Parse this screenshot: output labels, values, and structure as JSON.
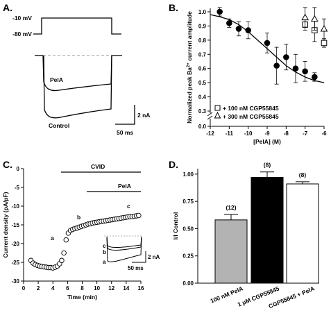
{
  "panels": {
    "A": {
      "label": "A.",
      "protocol": {
        "v_test": "-10 mV",
        "v_hold": "-80 mV"
      },
      "trace_labels": {
        "pela": "PelA",
        "control": "Control"
      },
      "scale_bar": {
        "current": "2 nA",
        "time": "50 ms"
      }
    },
    "B": {
      "label": "B.",
      "legend": [
        {
          "marker": "square",
          "label": "+ 100 nM CGP55845"
        },
        {
          "marker": "triangle",
          "label": "+ 300 nM CGP55845"
        }
      ]
    },
    "C": {
      "label": "C.",
      "bars": {
        "cvid": "CVID",
        "pela": "PelA"
      },
      "point_labels": {
        "a": "a",
        "b": "b",
        "c": "c"
      },
      "inset": {
        "labels": [
          "c",
          "b",
          "a"
        ],
        "scale_current": "2 nA",
        "scale_time": "50 ms"
      }
    },
    "D": {
      "label": "D.",
      "n_labels": [
        "(12)",
        "(8)",
        "(8)"
      ]
    }
  },
  "chart_data": [
    {
      "panel": "B",
      "type": "scatter",
      "xlabel": "[PelA] (M)",
      "ylabel": "Normalized peak Ba2+ current amplitude",
      "xlim": [
        -12,
        -6
      ],
      "ylim": [
        0,
        1.05
      ],
      "xticks": [
        "-12",
        "-11",
        "-10",
        "-9",
        "-8",
        "-7",
        "-6"
      ],
      "yticks": [
        "0.0",
        "0.3",
        "0.4",
        "0.5",
        "0.6",
        "0.7",
        "0.8",
        "0.9",
        "1.0"
      ],
      "axis_break": true,
      "series": [
        {
          "marker": "circle-filled",
          "x": [
            -11.5,
            -11,
            -10.5,
            -10,
            -9,
            -8.5,
            -8,
            -7.5,
            -7,
            -6.5
          ],
          "y": [
            1.0,
            0.92,
            0.88,
            0.87,
            0.78,
            0.62,
            0.68,
            0.6,
            0.58,
            0.54
          ],
          "err": [
            0.03,
            0.03,
            0.05,
            0.06,
            0.07,
            0.13,
            0.09,
            0.1,
            0.07,
            0.03
          ]
        },
        {
          "marker": "square-open",
          "x": [
            -7,
            -6.5,
            -6
          ],
          "y": [
            0.91,
            0.87,
            0.78
          ],
          "err": [
            0.04,
            0.08,
            0.03
          ]
        },
        {
          "marker": "triangle-open",
          "x": [
            -7,
            -6.5,
            -6
          ],
          "y": [
            0.96,
            0.95,
            0.88
          ],
          "err": [
            0.07,
            0.08,
            0.07
          ]
        }
      ],
      "fit": {
        "x": [
          -12,
          -11.5,
          -11,
          -10.5,
          -10,
          -9.5,
          -9,
          -8.5,
          -8,
          -7.5,
          -7,
          -6.5,
          -6
        ],
        "y": [
          0.98,
          0.965,
          0.945,
          0.91,
          0.86,
          0.8,
          0.74,
          0.68,
          0.62,
          0.575,
          0.54,
          0.515,
          0.5
        ]
      }
    },
    {
      "panel": "C",
      "type": "scatter",
      "xlabel": "Time (min)",
      "ylabel": "Current density (pA/pF)",
      "xlim": [
        0,
        16
      ],
      "ylim": [
        -30,
        0
      ],
      "xticks": [
        "0",
        "2",
        "4",
        "6",
        "8",
        "10",
        "12",
        "14",
        "16"
      ],
      "yticks": [
        "0",
        "-5",
        "-10",
        "-15",
        "-20",
        "-25",
        "-30"
      ],
      "x": [
        1.0,
        1.3,
        1.6,
        1.9,
        2.2,
        2.5,
        2.8,
        3.1,
        3.4,
        3.7,
        4.0,
        4.3,
        4.6,
        4.9,
        5.2,
        5.5,
        5.8,
        6.1,
        6.4,
        6.7,
        7.0,
        7.3,
        7.6,
        7.9,
        8.2,
        8.5,
        8.8,
        9.1,
        9.4,
        9.7,
        10.0,
        10.3,
        10.6,
        10.9,
        11.2,
        11.5,
        11.8,
        12.1,
        12.4,
        12.7,
        13.0,
        13.3,
        13.6,
        13.9,
        14.2,
        14.5,
        14.8,
        15.1,
        15.4,
        15.7
      ],
      "y": [
        -24.5,
        -25.2,
        -25.6,
        -25.8,
        -26.0,
        -26.1,
        -26.2,
        -26.3,
        -26.4,
        -26.4,
        -26.5,
        -26.3,
        -26.0,
        -25.4,
        -24.5,
        -22.5,
        -19.0,
        -17.2,
        -16.5,
        -16.2,
        -16.0,
        -15.8,
        -15.6,
        -15.4,
        -15.2,
        -15.0,
        -14.8,
        -14.7,
        -14.5,
        -14.4,
        -14.3,
        -14.2,
        -14.1,
        -14.0,
        -13.9,
        -13.8,
        -13.7,
        -13.6,
        -13.5,
        -13.4,
        -13.3,
        -13.2,
        -13.1,
        -13.0,
        -12.9,
        -12.8,
        -12.8,
        -12.7,
        -12.6,
        -12.5
      ]
    },
    {
      "panel": "D",
      "type": "bar",
      "ylabel": "I/I Control",
      "ylim": [
        0,
        1.05
      ],
      "yticks": [
        "0.00",
        "0.25",
        "0.50",
        "0.75",
        "1.00"
      ],
      "categories": [
        "100 nM PelA",
        "1 μM CGP55845",
        "CGP55845 + PelA"
      ],
      "values": [
        0.58,
        0.97,
        0.91
      ],
      "err": [
        0.05,
        0.05,
        0.02
      ],
      "colors": [
        "#b3b3b3",
        "#000000",
        "#ffffff"
      ]
    }
  ]
}
